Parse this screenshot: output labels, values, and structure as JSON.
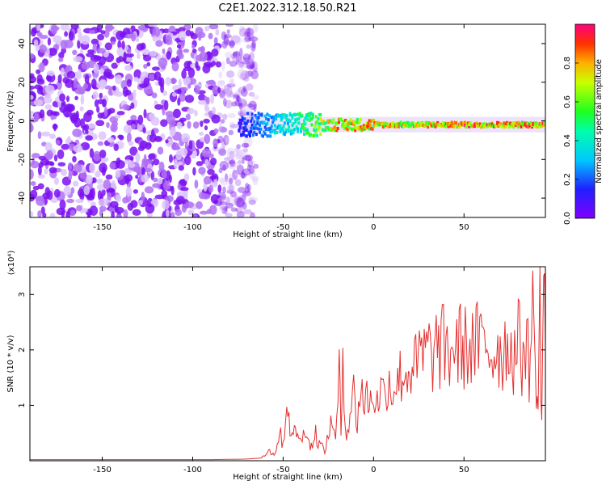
{
  "title": "C2E1.2022.312.18.50.R21",
  "chart_data": [
    {
      "type": "heatmap",
      "xlabel": "Height of straight line (km)",
      "ylabel": "Frequency (Hz)",
      "xlim": [
        -190,
        95
      ],
      "ylim": [
        -50,
        50
      ],
      "xticks": [
        -150,
        -100,
        -50,
        0,
        50
      ],
      "yticks": [
        -40,
        -20,
        0,
        20,
        40
      ],
      "noise_region_x": [
        -190,
        -70
      ],
      "signal_line": {
        "x_start": -75,
        "x_end": 95,
        "freq": -2,
        "amplitude_profile": [
          {
            "x": -75,
            "amp": 0.15
          },
          {
            "x": -45,
            "amp": 0.45
          },
          {
            "x": -20,
            "amp": 0.85
          },
          {
            "x": 20,
            "amp": 0.8
          },
          {
            "x": 60,
            "amp": 0.95
          },
          {
            "x": 95,
            "amp": 0.9
          }
        ]
      },
      "colorbar": {
        "label": "Normalized spectral amplitude",
        "range": [
          0,
          1
        ],
        "ticks": [
          0.0,
          0.2,
          0.4,
          0.6,
          0.8
        ],
        "colormap": "rainbow"
      },
      "grid": false
    },
    {
      "type": "line",
      "xlabel": "Height of straight line (km)",
      "ylabel": "SNR (10 * v/v)",
      "multiplier": "(x10⁴)",
      "xlim": [
        -190,
        95
      ],
      "ylim": [
        0,
        3.5
      ],
      "xticks": [
        -150,
        -100,
        -50,
        0,
        50
      ],
      "yticks": [
        1,
        2,
        3
      ],
      "grid": false,
      "series": [
        {
          "color": "#e53030",
          "x": [
            -190,
            -170,
            -150,
            -130,
            -110,
            -90,
            -70,
            -62,
            -58,
            -55,
            -52,
            -50,
            -48,
            -45,
            -42,
            -40,
            -37,
            -35,
            -32,
            -30,
            -27,
            -25,
            -23,
            -21,
            -19,
            -18,
            -17,
            -15,
            -13,
            -11,
            -9,
            -7,
            -5,
            -3,
            -1,
            0,
            2,
            4,
            6,
            8,
            10,
            12,
            14,
            16,
            18,
            20,
            22,
            24,
            26,
            28,
            30,
            32,
            34,
            36,
            38,
            40,
            42,
            44,
            46,
            48,
            50,
            52,
            54,
            56,
            58,
            60,
            62,
            64,
            66,
            68,
            70,
            72,
            74,
            76,
            78,
            80,
            82,
            84,
            86,
            88,
            90,
            91,
            92,
            93,
            94,
            95
          ],
          "y": [
            0.02,
            0.02,
            0.02,
            0.02,
            0.02,
            0.02,
            0.03,
            0.05,
            0.2,
            0.1,
            0.5,
            0.3,
            1.1,
            0.4,
            0.6,
            0.3,
            0.7,
            0.2,
            0.5,
            0.3,
            0.2,
            0.4,
            0.9,
            0.3,
            1.6,
            0.5,
            2.0,
            0.4,
            0.9,
            1.2,
            0.7,
            1.4,
            1.0,
            1.2,
            1.0,
            1.3,
            1.0,
            1.4,
            1.1,
            1.6,
            1.2,
            1.5,
            1.4,
            1.7,
            1.5,
            1.7,
            1.8,
            1.6,
            1.9,
            1.9,
            1.95,
            1.9,
            2.0,
            2.0,
            2.05,
            2.0,
            1.9,
            2.1,
            2.0,
            2.1,
            2.05,
            2.0,
            2.1,
            2.0,
            2.15,
            2.0,
            2.1,
            2.05,
            1.9,
            2.1,
            2.0,
            1.95,
            2.2,
            2.0,
            1.9,
            2.2,
            1.8,
            2.3,
            1.7,
            2.6,
            1.5,
            0.9,
            2.8,
            0.7,
            3.5,
            2.0
          ]
        }
      ]
    }
  ]
}
